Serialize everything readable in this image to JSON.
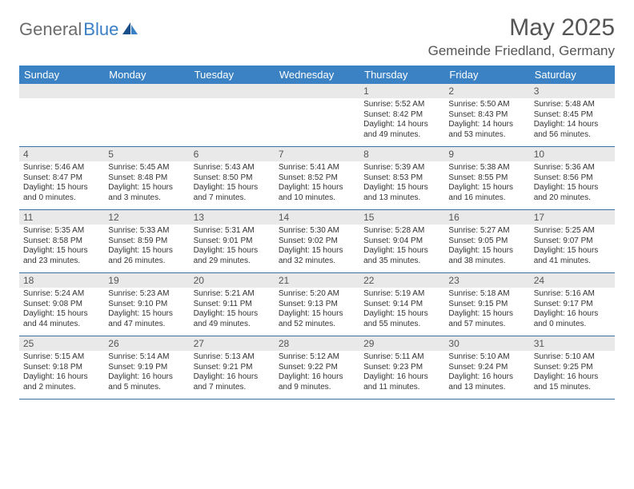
{
  "brand": {
    "part1": "General",
    "part2": "Blue"
  },
  "title": "May 2025",
  "location": "Gemeinde Friedland, Germany",
  "colors": {
    "header_bg": "#3b82c4",
    "header_text": "#ffffff",
    "daynum_bg": "#e9e9e9",
    "week_border": "#3b6fa0",
    "text": "#333333",
    "title_text": "#555555",
    "logo_gray": "#6c6c6c",
    "logo_blue": "#3b7fc4",
    "page_bg": "#ffffff"
  },
  "typography": {
    "title_fontsize": 30,
    "location_fontsize": 17,
    "dayheader_fontsize": 13,
    "daynum_fontsize": 12,
    "body_fontsize": 10
  },
  "day_headers": [
    "Sunday",
    "Monday",
    "Tuesday",
    "Wednesday",
    "Thursday",
    "Friday",
    "Saturday"
  ],
  "weeks": [
    [
      {},
      {},
      {},
      {},
      {
        "num": "1",
        "sunrise": "Sunrise: 5:52 AM",
        "sunset": "Sunset: 8:42 PM",
        "daylight": "Daylight: 14 hours and 49 minutes."
      },
      {
        "num": "2",
        "sunrise": "Sunrise: 5:50 AM",
        "sunset": "Sunset: 8:43 PM",
        "daylight": "Daylight: 14 hours and 53 minutes."
      },
      {
        "num": "3",
        "sunrise": "Sunrise: 5:48 AM",
        "sunset": "Sunset: 8:45 PM",
        "daylight": "Daylight: 14 hours and 56 minutes."
      }
    ],
    [
      {
        "num": "4",
        "sunrise": "Sunrise: 5:46 AM",
        "sunset": "Sunset: 8:47 PM",
        "daylight": "Daylight: 15 hours and 0 minutes."
      },
      {
        "num": "5",
        "sunrise": "Sunrise: 5:45 AM",
        "sunset": "Sunset: 8:48 PM",
        "daylight": "Daylight: 15 hours and 3 minutes."
      },
      {
        "num": "6",
        "sunrise": "Sunrise: 5:43 AM",
        "sunset": "Sunset: 8:50 PM",
        "daylight": "Daylight: 15 hours and 7 minutes."
      },
      {
        "num": "7",
        "sunrise": "Sunrise: 5:41 AM",
        "sunset": "Sunset: 8:52 PM",
        "daylight": "Daylight: 15 hours and 10 minutes."
      },
      {
        "num": "8",
        "sunrise": "Sunrise: 5:39 AM",
        "sunset": "Sunset: 8:53 PM",
        "daylight": "Daylight: 15 hours and 13 minutes."
      },
      {
        "num": "9",
        "sunrise": "Sunrise: 5:38 AM",
        "sunset": "Sunset: 8:55 PM",
        "daylight": "Daylight: 15 hours and 16 minutes."
      },
      {
        "num": "10",
        "sunrise": "Sunrise: 5:36 AM",
        "sunset": "Sunset: 8:56 PM",
        "daylight": "Daylight: 15 hours and 20 minutes."
      }
    ],
    [
      {
        "num": "11",
        "sunrise": "Sunrise: 5:35 AM",
        "sunset": "Sunset: 8:58 PM",
        "daylight": "Daylight: 15 hours and 23 minutes."
      },
      {
        "num": "12",
        "sunrise": "Sunrise: 5:33 AM",
        "sunset": "Sunset: 8:59 PM",
        "daylight": "Daylight: 15 hours and 26 minutes."
      },
      {
        "num": "13",
        "sunrise": "Sunrise: 5:31 AM",
        "sunset": "Sunset: 9:01 PM",
        "daylight": "Daylight: 15 hours and 29 minutes."
      },
      {
        "num": "14",
        "sunrise": "Sunrise: 5:30 AM",
        "sunset": "Sunset: 9:02 PM",
        "daylight": "Daylight: 15 hours and 32 minutes."
      },
      {
        "num": "15",
        "sunrise": "Sunrise: 5:28 AM",
        "sunset": "Sunset: 9:04 PM",
        "daylight": "Daylight: 15 hours and 35 minutes."
      },
      {
        "num": "16",
        "sunrise": "Sunrise: 5:27 AM",
        "sunset": "Sunset: 9:05 PM",
        "daylight": "Daylight: 15 hours and 38 minutes."
      },
      {
        "num": "17",
        "sunrise": "Sunrise: 5:25 AM",
        "sunset": "Sunset: 9:07 PM",
        "daylight": "Daylight: 15 hours and 41 minutes."
      }
    ],
    [
      {
        "num": "18",
        "sunrise": "Sunrise: 5:24 AM",
        "sunset": "Sunset: 9:08 PM",
        "daylight": "Daylight: 15 hours and 44 minutes."
      },
      {
        "num": "19",
        "sunrise": "Sunrise: 5:23 AM",
        "sunset": "Sunset: 9:10 PM",
        "daylight": "Daylight: 15 hours and 47 minutes."
      },
      {
        "num": "20",
        "sunrise": "Sunrise: 5:21 AM",
        "sunset": "Sunset: 9:11 PM",
        "daylight": "Daylight: 15 hours and 49 minutes."
      },
      {
        "num": "21",
        "sunrise": "Sunrise: 5:20 AM",
        "sunset": "Sunset: 9:13 PM",
        "daylight": "Daylight: 15 hours and 52 minutes."
      },
      {
        "num": "22",
        "sunrise": "Sunrise: 5:19 AM",
        "sunset": "Sunset: 9:14 PM",
        "daylight": "Daylight: 15 hours and 55 minutes."
      },
      {
        "num": "23",
        "sunrise": "Sunrise: 5:18 AM",
        "sunset": "Sunset: 9:15 PM",
        "daylight": "Daylight: 15 hours and 57 minutes."
      },
      {
        "num": "24",
        "sunrise": "Sunrise: 5:16 AM",
        "sunset": "Sunset: 9:17 PM",
        "daylight": "Daylight: 16 hours and 0 minutes."
      }
    ],
    [
      {
        "num": "25",
        "sunrise": "Sunrise: 5:15 AM",
        "sunset": "Sunset: 9:18 PM",
        "daylight": "Daylight: 16 hours and 2 minutes."
      },
      {
        "num": "26",
        "sunrise": "Sunrise: 5:14 AM",
        "sunset": "Sunset: 9:19 PM",
        "daylight": "Daylight: 16 hours and 5 minutes."
      },
      {
        "num": "27",
        "sunrise": "Sunrise: 5:13 AM",
        "sunset": "Sunset: 9:21 PM",
        "daylight": "Daylight: 16 hours and 7 minutes."
      },
      {
        "num": "28",
        "sunrise": "Sunrise: 5:12 AM",
        "sunset": "Sunset: 9:22 PM",
        "daylight": "Daylight: 16 hours and 9 minutes."
      },
      {
        "num": "29",
        "sunrise": "Sunrise: 5:11 AM",
        "sunset": "Sunset: 9:23 PM",
        "daylight": "Daylight: 16 hours and 11 minutes."
      },
      {
        "num": "30",
        "sunrise": "Sunrise: 5:10 AM",
        "sunset": "Sunset: 9:24 PM",
        "daylight": "Daylight: 16 hours and 13 minutes."
      },
      {
        "num": "31",
        "sunrise": "Sunrise: 5:10 AM",
        "sunset": "Sunset: 9:25 PM",
        "daylight": "Daylight: 16 hours and 15 minutes."
      }
    ]
  ]
}
